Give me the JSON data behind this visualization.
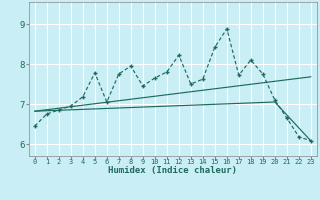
{
  "xlabel": "Humidex (Indice chaleur)",
  "ylabel": "",
  "bg_color": "#caeef5",
  "grid_color": "#ffffff",
  "line_color": "#1e6b5e",
  "xlim": [
    -0.5,
    23.5
  ],
  "ylim": [
    5.7,
    9.55
  ],
  "xticks": [
    0,
    1,
    2,
    3,
    4,
    5,
    6,
    7,
    8,
    9,
    10,
    11,
    12,
    13,
    14,
    15,
    16,
    17,
    18,
    19,
    20,
    21,
    22,
    23
  ],
  "yticks": [
    6,
    7,
    8,
    9
  ],
  "line1_x": [
    0,
    1,
    2,
    3,
    4,
    5,
    6,
    7,
    8,
    9,
    10,
    11,
    12,
    13,
    14,
    15,
    16,
    17,
    18,
    19,
    20,
    21,
    22,
    23
  ],
  "line1_y": [
    6.45,
    6.75,
    6.85,
    6.95,
    7.18,
    7.78,
    7.05,
    7.75,
    7.95,
    7.45,
    7.65,
    7.8,
    8.22,
    7.5,
    7.62,
    8.42,
    8.88,
    7.72,
    8.1,
    7.75,
    7.1,
    6.65,
    6.18,
    6.08
  ],
  "line2_x": [
    0,
    23
  ],
  "line2_y": [
    6.82,
    7.68
  ],
  "line3_x": [
    0,
    20,
    23
  ],
  "line3_y": [
    6.82,
    7.05,
    6.08
  ]
}
